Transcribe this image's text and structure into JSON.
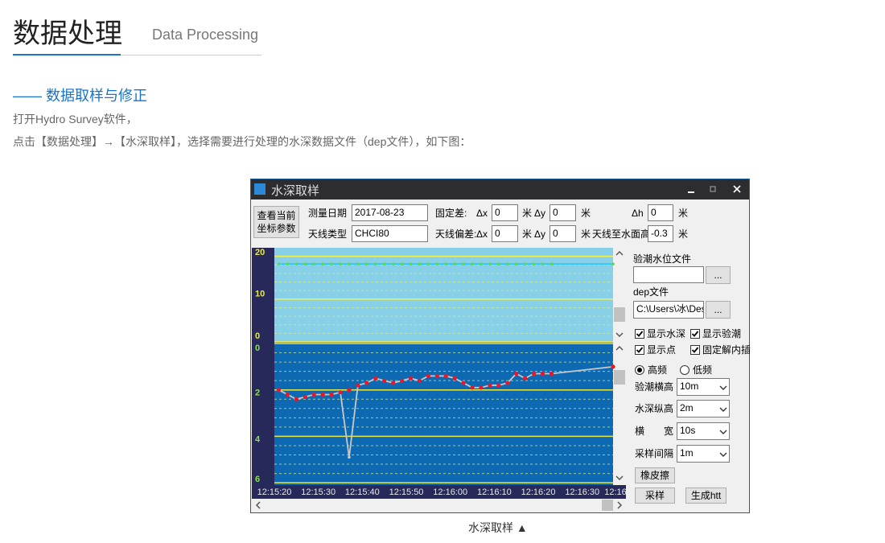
{
  "header": {
    "title": "数据处理",
    "subtitle": "Data Processing"
  },
  "section": {
    "heading": "—— 数据取样与修正",
    "paragraphs": [
      "打开Hydro Survey软件，",
      "点击【数据处理】→【水深取样】，选择需要进行处理的水深数据文件（dep文件），如下图："
    ]
  },
  "window": {
    "title": "水深取样",
    "coord_button": [
      "查看当前",
      "坐标参数"
    ],
    "unit": "米",
    "survey_date": {
      "label": "测量日期",
      "value": "2017-08-23"
    },
    "antenna_type": {
      "label": "天线类型",
      "value": "CHCI80"
    },
    "fixed_offset": {
      "label": "固定差:",
      "dx_label": "Δx",
      "dx": "0",
      "dy_label": "Δy",
      "dy": "0",
      "dh_label": "Δh",
      "dh": "0"
    },
    "antenna_offset": {
      "label": "天线偏差:",
      "dx_label": "Δx",
      "dx": "0",
      "dy_label": "Δy",
      "dy": "0",
      "height_label": "天线至水面高",
      "height": "-0.3"
    },
    "tide_file": {
      "label": "验潮水位文件",
      "browse": "..."
    },
    "dep_file": {
      "label": "dep文件",
      "value": "C:\\Users\\冰\\Des",
      "browse": "..."
    },
    "checkboxes": [
      {
        "label": "显示水深",
        "checked": true
      },
      {
        "label": "显示验潮",
        "checked": true
      },
      {
        "label": "显示点",
        "checked": true
      },
      {
        "label": "固定解内插",
        "checked": true
      }
    ],
    "radios": [
      {
        "label": "高频",
        "selected": true
      },
      {
        "label": "低频",
        "selected": false
      }
    ],
    "selects": [
      {
        "label": "验潮横高",
        "value": "10m"
      },
      {
        "label": "水深纵高",
        "value": "2m"
      },
      {
        "label": "横　　宽",
        "value": "10s"
      },
      {
        "label": "采样间隔",
        "value": "1m"
      }
    ],
    "buttons": {
      "eraser": "橡皮擦",
      "sample": "采样",
      "generate": "生成htt"
    }
  },
  "chart_data": [
    {
      "type": "line",
      "background": "#88cfe8",
      "grid_color": "#f2f24a",
      "tick_color": "#e8e84a",
      "xlim": [
        "12:15:20",
        "12:16:37"
      ],
      "ylim": [
        0,
        22
      ],
      "yticks": [
        0,
        10,
        20
      ],
      "minor_yticks": [
        2,
        4,
        6,
        8,
        12,
        14,
        16,
        18
      ],
      "x": [
        "12:15:21",
        "12:15:23",
        "12:15:25",
        "12:15:27",
        "12:15:29",
        "12:15:31",
        "12:15:33",
        "12:15:35",
        "12:15:37",
        "12:15:39",
        "12:15:41",
        "12:15:43",
        "12:15:45",
        "12:15:47",
        "12:15:49",
        "12:15:51",
        "12:15:53",
        "12:15:55",
        "12:15:57",
        "12:15:59",
        "12:16:01",
        "12:16:03",
        "12:16:05",
        "12:16:07",
        "12:16:09",
        "12:16:11",
        "12:16:13",
        "12:16:15",
        "12:16:17",
        "12:16:19",
        "12:16:21",
        "12:16:23",
        "12:16:37"
      ],
      "series": [
        {
          "color": "#5fdc3c",
          "line_color": "#2fc6f5",
          "line": true,
          "marker": true,
          "values": [
            18.2,
            18.2,
            18.2,
            18.2,
            18.2,
            18.2,
            18.2,
            18.2,
            18.2,
            18.2,
            18.2,
            18.2,
            18.2,
            18.2,
            18.2,
            18.2,
            18.2,
            18.2,
            18.2,
            18.2,
            18.2,
            18.2,
            18.2,
            18.2,
            18.2,
            18.2,
            18.2,
            18.2,
            18.2,
            18.2,
            18.2,
            18.2,
            18.2
          ]
        }
      ]
    },
    {
      "type": "line",
      "background": "#0d6ab2",
      "grid_color": "#e8e84a",
      "tick_color": "#8ae04a",
      "xlim": [
        "12:15:20",
        "12:16:37"
      ],
      "ylim": [
        6.1,
        0
      ],
      "yticks": [
        0,
        2,
        4,
        6
      ],
      "minor_yticks": [
        0.4,
        0.8,
        1.2,
        1.6,
        2.4,
        2.8,
        3.2,
        3.6,
        4.4,
        4.8,
        5.2,
        5.6
      ],
      "xticks": [
        "12:15:20",
        "12:15:30",
        "12:15:40",
        "12:15:50",
        "12:16:00",
        "12:16:10",
        "12:16:20",
        "12:16:30",
        {
          "value": "12:16:40",
          "label": "12:16"
        }
      ],
      "x": [
        "12:15:21",
        "12:15:23",
        "12:15:25",
        "12:15:27",
        "12:15:29",
        "12:15:31",
        "12:15:33",
        "12:15:35",
        "12:15:37",
        "12:15:39",
        "12:15:41",
        "12:15:43",
        "12:15:45",
        "12:15:47",
        "12:15:49",
        "12:15:51",
        "12:15:53",
        "12:15:55",
        "12:15:57",
        "12:15:59",
        "12:16:01",
        "12:16:03",
        "12:16:05",
        "12:16:07",
        "12:16:09",
        "12:16:11",
        "12:16:13",
        "12:16:15",
        "12:16:17",
        "12:16:19",
        "12:16:21",
        "12:16:23",
        "12:16:37"
      ],
      "series": [
        {
          "color": "#c8c8c8",
          "line": true,
          "marker": true,
          "values": [
            2.0,
            2.2,
            2.4,
            2.3,
            2.2,
            2.2,
            2.2,
            2.1,
            4.9,
            1.8,
            1.7,
            1.5,
            1.6,
            1.7,
            1.6,
            1.5,
            1.6,
            1.4,
            1.4,
            1.4,
            1.5,
            1.7,
            1.9,
            1.9,
            1.8,
            1.8,
            1.7,
            1.3,
            1.5,
            1.3,
            1.3,
            1.3,
            1.0
          ]
        },
        {
          "color": "#e8182a",
          "line": false,
          "marker": true,
          "values": [
            2.0,
            2.2,
            2.4,
            2.3,
            2.2,
            2.2,
            2.2,
            2.1,
            2.0,
            1.8,
            1.7,
            1.5,
            1.6,
            1.7,
            1.6,
            1.5,
            1.6,
            1.4,
            1.4,
            1.4,
            1.5,
            1.7,
            1.9,
            1.9,
            1.8,
            1.8,
            1.7,
            1.3,
            1.5,
            1.3,
            1.3,
            1.3,
            1.0
          ]
        }
      ]
    }
  ],
  "caption": "水深取样 ▲"
}
